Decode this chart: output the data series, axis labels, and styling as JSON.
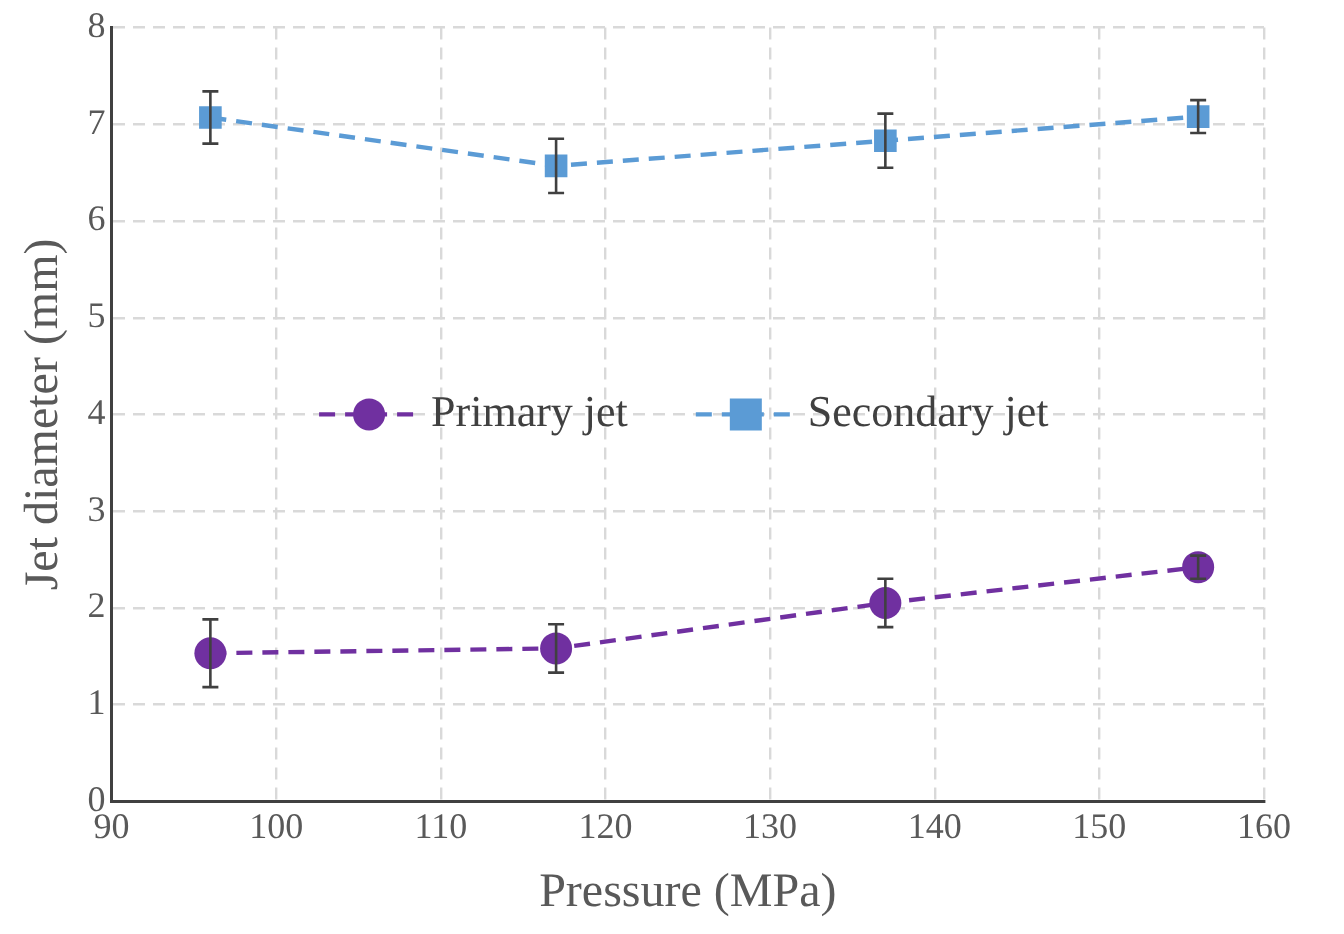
{
  "chart_data": {
    "type": "line",
    "xlabel": "Pressure (MPa)",
    "ylabel": "Jet diameter (mm)",
    "x": [
      96,
      117,
      137,
      156
    ],
    "series": [
      {
        "name": "Primary jet",
        "color": "#7030a0",
        "values": [
          1.53,
          1.58,
          2.05,
          2.42
        ],
        "errors": [
          0.35,
          0.25,
          0.25,
          0.12
        ],
        "marker": "circle"
      },
      {
        "name": "Secondary jet",
        "color": "#5b9bd5",
        "values": [
          7.07,
          6.57,
          6.83,
          7.08
        ],
        "errors": [
          0.27,
          0.28,
          0.28,
          0.17
        ],
        "marker": "square"
      }
    ],
    "xlim": [
      90,
      160
    ],
    "xticks": [
      90,
      100,
      110,
      120,
      130,
      140,
      150,
      160
    ],
    "ylim": [
      0,
      8
    ],
    "yticks": [
      0,
      1,
      2,
      3,
      4,
      5,
      6,
      7,
      8
    ],
    "grid": true,
    "legend": "center",
    "line_style": "dashed"
  }
}
